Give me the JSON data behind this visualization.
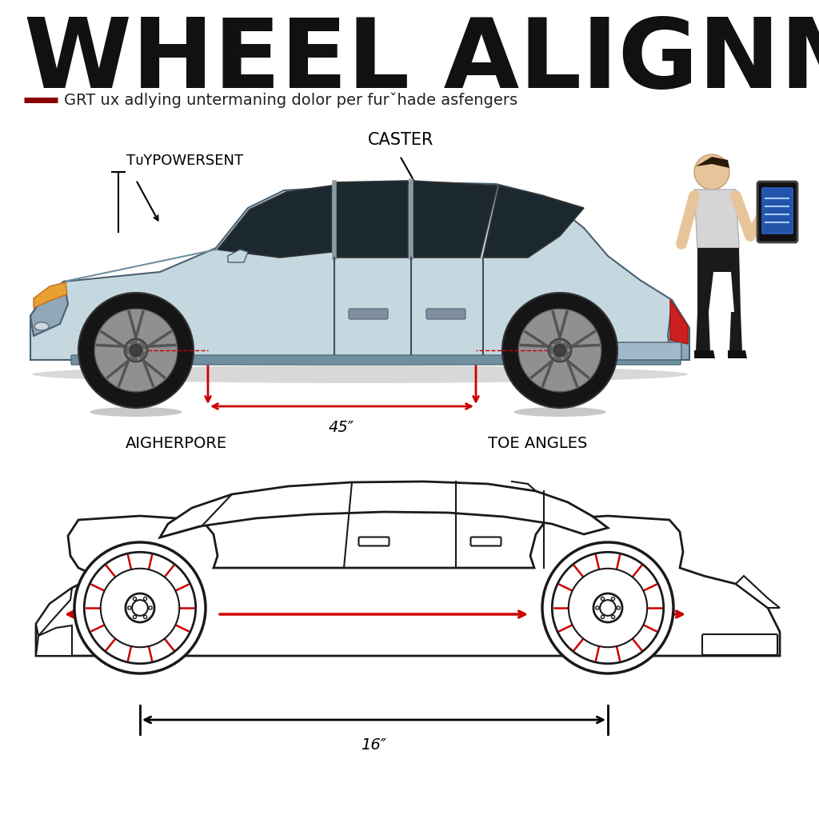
{
  "title": "WHEEL ALIGNMENT",
  "subtitle_line_color": "#8B0000",
  "subtitle_text": "GRT ux adlying untermaning dolor per furˇhade asfengers",
  "bg_color": "#ffffff",
  "label_camber": "TᴜYPOWERSENT",
  "label_caster": "CASTER",
  "label_aigherpore": "AIGHERPORE",
  "label_toe": "TOE ANGLES",
  "measurement_top": "45″",
  "measurement_bottom": "16″",
  "arrow_color": "#CC0000",
  "car_body_color": "#c5d8e0",
  "car_window_color": "#2a2a2a",
  "car_edge_color": "#4a6070",
  "wheel_dark": "#1a1a1a",
  "wheel_rim": "#aaaaaa",
  "car_line_color": "#1a1a1a",
  "person_skin": "#e8c49a",
  "person_shirt": "#d0d0d0",
  "person_pants": "#1a1a1a"
}
